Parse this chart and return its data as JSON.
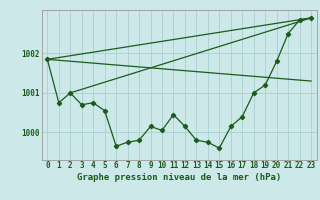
{
  "title": "Graphe pression niveau de la mer (hPa)",
  "background_color": "#cce8e8",
  "grid_color": "#aad0d0",
  "line_color": "#1a5c1a",
  "marker_color": "#1a5c1a",
  "xlim": [
    -0.5,
    23.5
  ],
  "ylim": [
    999.3,
    1003.1
  ],
  "yticks": [
    1000,
    1001,
    1002
  ],
  "xticks": [
    0,
    1,
    2,
    3,
    4,
    5,
    6,
    7,
    8,
    9,
    10,
    11,
    12,
    13,
    14,
    15,
    16,
    17,
    18,
    19,
    20,
    21,
    22,
    23
  ],
  "series1": [
    1001.85,
    1000.75,
    1001.0,
    1000.7,
    1000.75,
    1000.55,
    999.65,
    999.75,
    999.8,
    1000.15,
    1000.05,
    1000.45,
    1000.15,
    999.8,
    999.75,
    999.6,
    1000.15,
    1000.4,
    1001.0,
    1001.2,
    1001.8,
    1002.5,
    1002.85,
    1002.9
  ],
  "line2_x": [
    0,
    23
  ],
  "line2_y": [
    1001.85,
    1001.3
  ],
  "line3_x": [
    0,
    23
  ],
  "line3_y": [
    1001.85,
    1002.9
  ],
  "line4_x": [
    2,
    23
  ],
  "line4_y": [
    1001.0,
    1002.9
  ],
  "tick_fontsize": 5.5,
  "title_fontsize": 6.5,
  "lw": 0.9,
  "ms": 2.2
}
